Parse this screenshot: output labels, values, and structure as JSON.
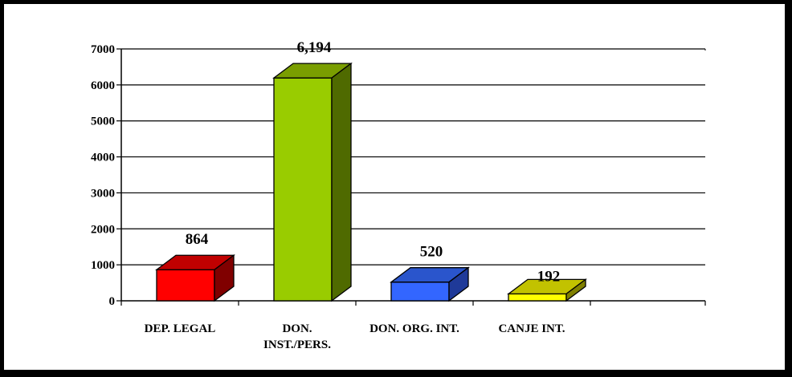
{
  "chart_data": {
    "type": "bar",
    "style": "3d",
    "categories": [
      "DEP. LEGAL",
      "DON. INST./PERS.",
      "DON. ORG. INT.",
      "CANJE INT."
    ],
    "category_lines": [
      [
        "DEP. LEGAL"
      ],
      [
        "DON.",
        "INST./PERS."
      ],
      [
        "DON. ORG. INT."
      ],
      [
        "CANJE INT."
      ]
    ],
    "values": [
      864,
      6194,
      520,
      192
    ],
    "value_labels": [
      "864",
      "6,194",
      "520",
      "192"
    ],
    "ylim": [
      0,
      7000
    ],
    "yticks": [
      0,
      1000,
      2000,
      3000,
      4000,
      5000,
      6000,
      7000
    ],
    "ytick_labels": [
      "0",
      "1000",
      "2000",
      "3000",
      "4000",
      "5000",
      "6000",
      "7000"
    ],
    "grid": true,
    "colors": [
      {
        "front": "#ff0000",
        "side": "#800000",
        "top": "#c00000"
      },
      {
        "front": "#99cc00",
        "side": "#4f6a00",
        "top": "#7a9e00"
      },
      {
        "front": "#3366ff",
        "side": "#1f3a99",
        "top": "#2a55cc"
      },
      {
        "front": "#ffff00",
        "side": "#808000",
        "top": "#c2c200"
      }
    ]
  }
}
